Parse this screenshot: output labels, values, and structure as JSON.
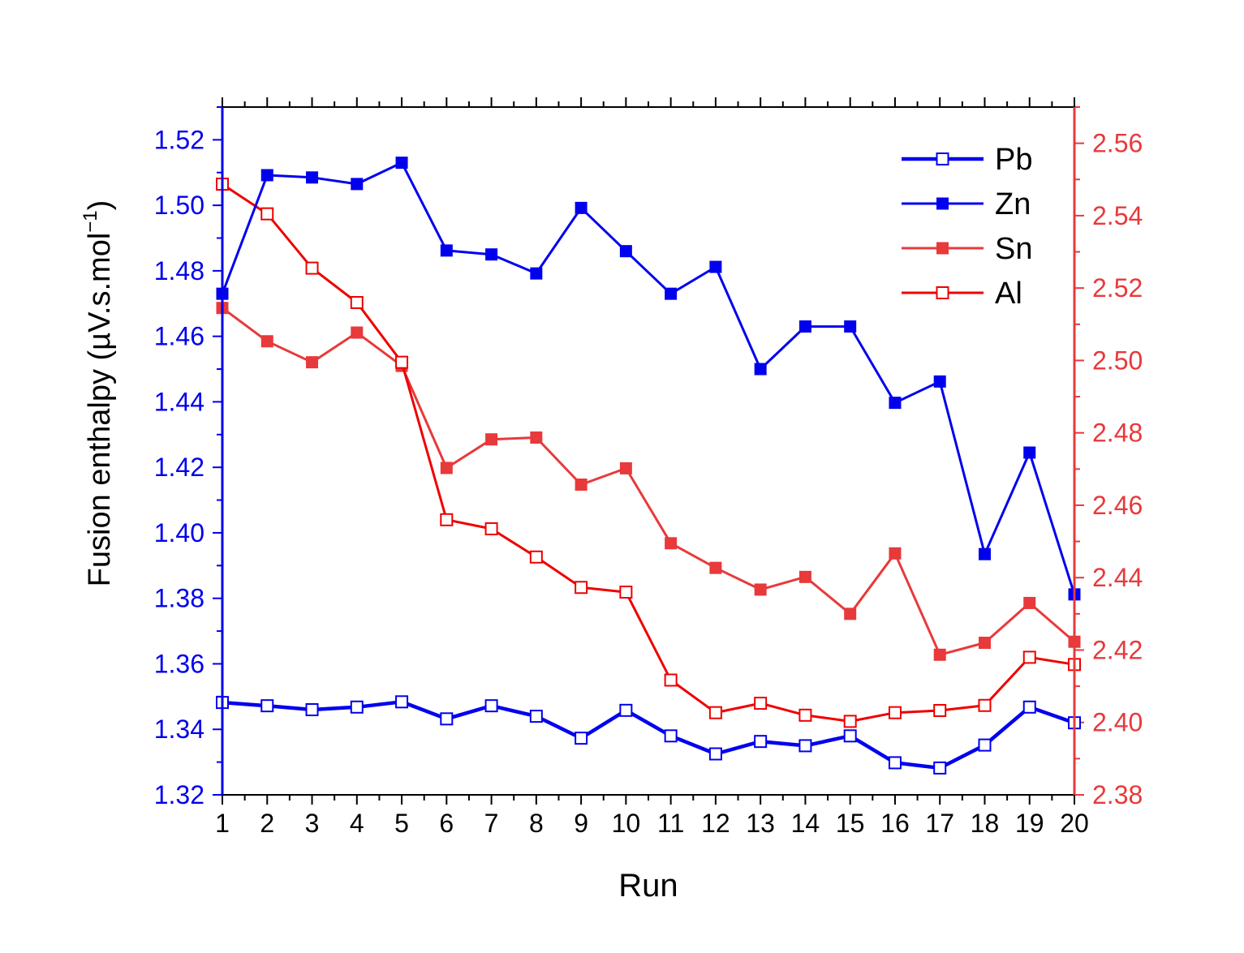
{
  "chart_data": {
    "type": "line",
    "title": "",
    "xlabel": "Run",
    "ylabel": "Fusion enthalpy (µV.s.mol⁻¹)",
    "ylabel_parts": {
      "main": "Fusion enthalpy (",
      "unit": "µV.s.mol",
      "sup": "−1",
      "close": ")"
    },
    "x": [
      1,
      2,
      3,
      4,
      5,
      6,
      7,
      8,
      9,
      10,
      11,
      12,
      13,
      14,
      15,
      16,
      17,
      18,
      19,
      20
    ],
    "x_ticks": [
      "1",
      "2",
      "3",
      "4",
      "5",
      "6",
      "7",
      "8",
      "9",
      "10",
      "11",
      "12",
      "13",
      "14",
      "15",
      "16",
      "17",
      "18",
      "19",
      "20"
    ],
    "xlim": [
      1,
      20
    ],
    "ylim_left": [
      1.32,
      1.53
    ],
    "ylim_right": [
      2.38,
      2.57
    ],
    "y_ticks_left": [
      "1.32",
      "1.34",
      "1.36",
      "1.38",
      "1.40",
      "1.42",
      "1.44",
      "1.46",
      "1.48",
      "1.50",
      "1.52"
    ],
    "y_ticks_right": [
      "2.38",
      "2.40",
      "2.42",
      "2.44",
      "2.46",
      "2.48",
      "2.50",
      "2.52",
      "2.54",
      "2.56"
    ],
    "legend_position": "top-right",
    "colors": {
      "left_axis": "#0000ee",
      "right_axis": "#e8393b",
      "frame": "#000000"
    },
    "series": [
      {
        "name": "Pb",
        "axis": "left",
        "color": "#0000ee",
        "marker": "open-square",
        "line": "thick",
        "values": [
          1.3482,
          1.3472,
          1.346,
          1.3468,
          1.3484,
          1.3432,
          1.3472,
          1.344,
          1.3373,
          1.3458,
          1.338,
          1.3325,
          1.3363,
          1.335,
          1.338,
          1.3298,
          1.3282,
          1.3352,
          1.3468,
          1.342
        ]
      },
      {
        "name": "Zn",
        "axis": "left",
        "color": "#0000ee",
        "marker": "filled-square",
        "line": "normal",
        "values": [
          1.473,
          1.5092,
          1.5085,
          1.5065,
          1.513,
          1.4862,
          1.485,
          1.4792,
          1.4992,
          1.486,
          1.473,
          1.4812,
          1.45,
          1.463,
          1.463,
          1.4397,
          1.4462,
          1.3935,
          1.4245,
          1.3812
        ]
      },
      {
        "name": "Sn",
        "axis": "right",
        "color": "#e8393b",
        "marker": "filled-square",
        "line": "normal",
        "values": [
          2.5145,
          2.5053,
          2.4995,
          2.5077,
          2.4985,
          2.4703,
          2.4782,
          2.4787,
          2.4657,
          2.4702,
          2.4495,
          2.4427,
          2.4367,
          2.4402,
          2.43,
          2.4467,
          2.4187,
          2.422,
          2.433,
          2.4223
        ]
      },
      {
        "name": "Al",
        "axis": "right",
        "color": "#ee0000",
        "marker": "open-square",
        "line": "normal",
        "values": [
          2.5487,
          2.5405,
          2.5255,
          2.516,
          2.4995,
          2.456,
          2.4535,
          2.4457,
          2.4373,
          2.436,
          2.4117,
          2.4027,
          2.4053,
          2.402,
          2.4003,
          2.4027,
          2.4033,
          2.4047,
          2.418,
          2.416
        ]
      }
    ]
  }
}
